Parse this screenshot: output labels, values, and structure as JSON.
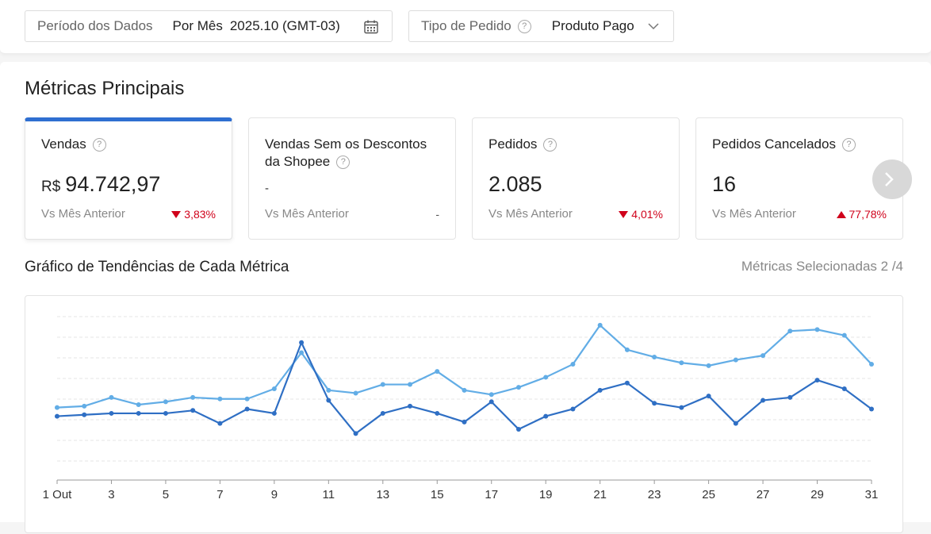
{
  "filters": {
    "period_label": "Período dos Dados",
    "period_mode": "Por Mês",
    "period_value": "2025.10 (GMT-03)",
    "type_label": "Tipo de Pedido",
    "type_value": "Produto Pago"
  },
  "section_title": "Métricas Principais",
  "cards": [
    {
      "title": "Vendas",
      "currency": "R$",
      "value": "94.742,97",
      "compare": "Vs Mês Anterior",
      "change": "3,83%",
      "direction": "down"
    },
    {
      "title": "Vendas Sem os Descontos da Shopee",
      "value": "-",
      "compare": "Vs Mês Anterior",
      "change": "-"
    },
    {
      "title": "Pedidos",
      "value": "2.085",
      "compare": "Vs Mês Anterior",
      "change": "4,01%",
      "direction": "down"
    },
    {
      "title": "Pedidos Cancelados",
      "value": "16",
      "compare": "Vs Mês Anterior",
      "change": "77,78%",
      "direction": "up"
    }
  ],
  "trend": {
    "title": "Gráfico de Tendências de Cada Métrica",
    "selected_label": "Métricas Selecionadas 2 /4"
  },
  "colors": {
    "accent": "#2f6fd1",
    "series_dark": "#2f6fc4",
    "series_light": "#62ade6",
    "negative": "#d0021b"
  },
  "chart_data": {
    "type": "line",
    "x_tick_labels": [
      "1 Out",
      "3",
      "5",
      "7",
      "9",
      "11",
      "13",
      "15",
      "17",
      "19",
      "21",
      "23",
      "25",
      "27",
      "29",
      "31"
    ],
    "x": [
      1,
      2,
      3,
      4,
      5,
      6,
      7,
      8,
      9,
      10,
      11,
      12,
      13,
      14,
      15,
      16,
      17,
      18,
      19,
      20,
      21,
      22,
      23,
      24,
      25,
      26,
      27,
      28,
      29,
      30,
      31
    ],
    "ylim": [
      0,
      100
    ],
    "grid": true,
    "series": [
      {
        "name": "light",
        "values": [
          37,
          38,
          44,
          39,
          41,
          44,
          43,
          43,
          50,
          75,
          49,
          47,
          53,
          53,
          62,
          49,
          46,
          51,
          58,
          67,
          94,
          77,
          72,
          68,
          66,
          70,
          73,
          90,
          91,
          87,
          67
        ]
      },
      {
        "name": "dark",
        "values": [
          31,
          32,
          33,
          33,
          33,
          35,
          26,
          36,
          33,
          82,
          42,
          19,
          33,
          38,
          33,
          27,
          41,
          22,
          31,
          36,
          49,
          54,
          40,
          37,
          45,
          26,
          42,
          44,
          56,
          50,
          36
        ]
      }
    ]
  }
}
